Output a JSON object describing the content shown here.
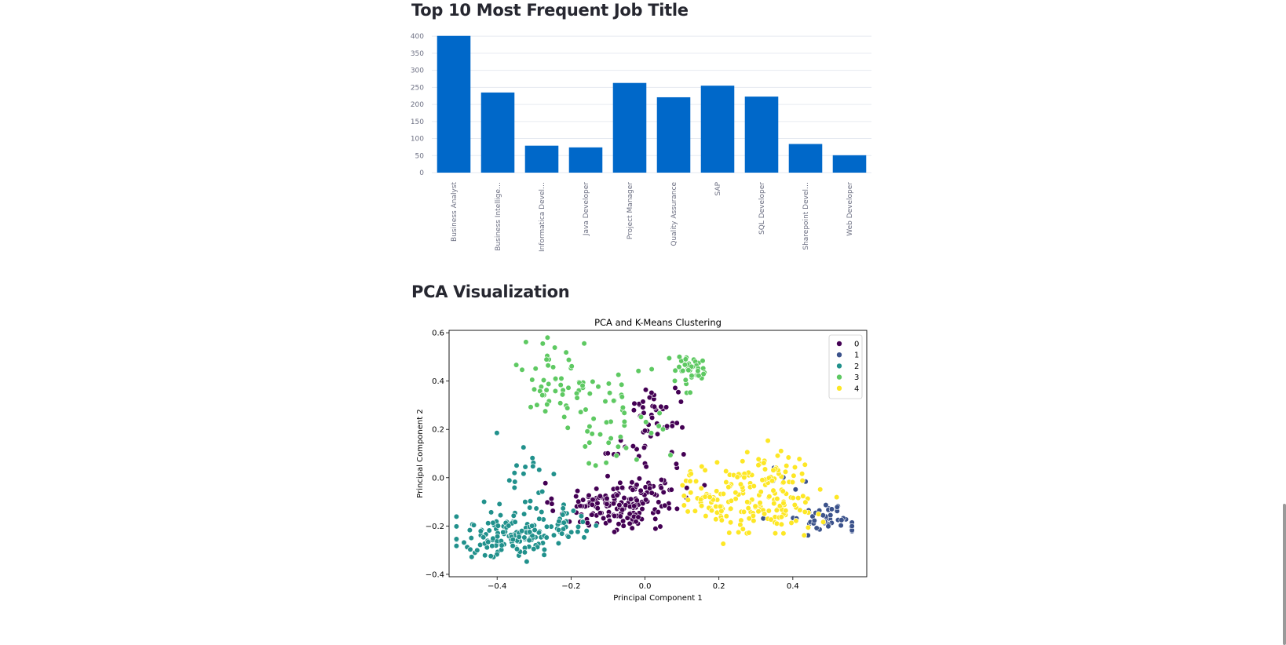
{
  "headings": {
    "bar_section": "Top 10 Most Frequent Job Title",
    "pca_section": "PCA Visualization"
  },
  "chart_data": [
    {
      "type": "bar",
      "categories": [
        "Business Analyst",
        "Business Intellige…",
        "Informatica Devel…",
        "Java Developer",
        "Project Manager",
        "Quality Assurance",
        "SAP",
        "SQL Developer",
        "Sharepoint Devel…",
        "Web Developer"
      ],
      "values": [
        401,
        235,
        79,
        74,
        263,
        221,
        255,
        223,
        84,
        51
      ],
      "yticks": [
        0,
        50,
        100,
        150,
        200,
        250,
        300,
        350,
        400
      ],
      "ylim": [
        0,
        405
      ],
      "bar_color": "#0068c9",
      "grid": true
    },
    {
      "type": "scatter",
      "title": "PCA and K-Means Clustering",
      "xlabel": "Principal Component 1",
      "ylabel": "Principal Component 2",
      "xlim": [
        -0.53,
        0.6
      ],
      "ylim": [
        -0.41,
        0.61
      ],
      "xticks": [
        -0.4,
        -0.2,
        0.0,
        0.2,
        0.4
      ],
      "yticks": [
        -0.4,
        -0.2,
        0.0,
        0.2,
        0.4,
        0.6
      ],
      "legend_position": "top-right",
      "series": [
        {
          "name": "0",
          "color": "#440154",
          "clusters": [
            {
              "cx": -0.1,
              "cy": -0.12,
              "sx": 0.07,
              "sy": 0.05,
              "n": 120
            },
            {
              "cx": 0.0,
              "cy": -0.07,
              "sx": 0.05,
              "sy": 0.05,
              "n": 50
            },
            {
              "cx": 0.03,
              "cy": 0.28,
              "sx": 0.04,
              "sy": 0.07,
              "n": 40
            },
            {
              "cx": -0.06,
              "cy": 0.1,
              "sx": 0.04,
              "sy": 0.02,
              "n": 10
            },
            {
              "cx": 0.09,
              "cy": 0.0,
              "sx": 0.04,
              "sy": 0.08,
              "n": 10
            }
          ]
        },
        {
          "name": "1",
          "color": "#3b528b",
          "clusters": [
            {
              "cx": 0.5,
              "cy": -0.17,
              "sx": 0.04,
              "sy": 0.03,
              "n": 45
            },
            {
              "cx": 0.36,
              "cy": -0.05,
              "sx": 0.06,
              "sy": 0.06,
              "n": 6
            }
          ]
        },
        {
          "name": "2",
          "color": "#21918c",
          "clusters": [
            {
              "cx": -0.36,
              "cy": -0.24,
              "sx": 0.07,
              "sy": 0.05,
              "n": 140
            },
            {
              "cx": -0.22,
              "cy": -0.2,
              "sx": 0.05,
              "sy": 0.04,
              "n": 35
            },
            {
              "cx": -0.33,
              "cy": 0.03,
              "sx": 0.05,
              "sy": 0.07,
              "n": 18
            }
          ]
        },
        {
          "name": "3",
          "color": "#5ec962",
          "clusters": [
            {
              "cx": -0.23,
              "cy": 0.4,
              "sx": 0.05,
              "sy": 0.09,
              "n": 55
            },
            {
              "cx": 0.12,
              "cy": 0.45,
              "sx": 0.035,
              "sy": 0.03,
              "n": 40
            },
            {
              "cx": -0.08,
              "cy": 0.25,
              "sx": 0.07,
              "sy": 0.1,
              "n": 45
            }
          ]
        },
        {
          "name": "4",
          "color": "#fde725",
          "clusters": [
            {
              "cx": 0.32,
              "cy": -0.1,
              "sx": 0.07,
              "sy": 0.07,
              "n": 140
            },
            {
              "cx": 0.16,
              "cy": -0.06,
              "sx": 0.04,
              "sy": 0.06,
              "n": 40
            },
            {
              "cx": 0.34,
              "cy": 0.05,
              "sx": 0.05,
              "sy": 0.04,
              "n": 25
            }
          ]
        }
      ]
    }
  ]
}
